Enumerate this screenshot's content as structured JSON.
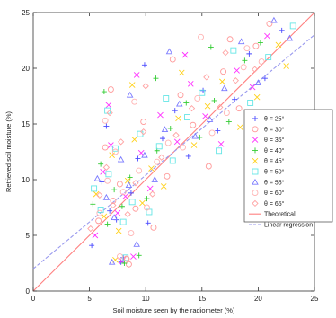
{
  "chart_data": {
    "type": "scatter",
    "title": "",
    "xlabel": "Soil moisture seen by the radiometer (%)",
    "ylabel": "Retrieved soil moisture (%)",
    "xlim": [
      0,
      25
    ],
    "ylim": [
      0,
      25
    ],
    "xticks": [
      0,
      5,
      10,
      15,
      20,
      25
    ],
    "yticks": [
      0,
      5,
      10,
      15,
      20,
      25
    ],
    "grid": false,
    "legend_position": "right",
    "series": [
      {
        "name": "θ = 25°",
        "marker": "plus",
        "color": "#4a4aff",
        "x": [
          5.2,
          6.1,
          6.8,
          7.4,
          8.0,
          8.7,
          9.3,
          10.2,
          11.5,
          12.6,
          13.8,
          15.1,
          16.4,
          17.9,
          19.2,
          20.6,
          22.1,
          6.5,
          7.8,
          9.9
        ],
        "y": [
          4.1,
          9.8,
          7.2,
          6.4,
          3.0,
          8.8,
          11.9,
          6.1,
          13.7,
          16.2,
          12.1,
          18.0,
          14.4,
          17.2,
          21.3,
          19.1,
          23.4,
          14.8,
          2.6,
          20.3
        ]
      },
      {
        "name": "θ = 30°",
        "marker": "circle",
        "color": "#ff9999",
        "x": [
          5.8,
          6.4,
          7.1,
          7.7,
          8.3,
          9.1,
          9.8,
          10.7,
          11.9,
          13.1,
          14.2,
          15.6,
          16.9,
          18.3,
          19.8,
          21.0,
          6.9,
          8.5,
          12.4,
          17.5
        ],
        "y": [
          6.3,
          12.9,
          8.1,
          9.6,
          2.9,
          7.4,
          15.2,
          5.7,
          10.3,
          17.6,
          14.9,
          11.2,
          19.7,
          16.4,
          22.0,
          24.0,
          18.1,
          2.4,
          20.8,
          22.6
        ]
      },
      {
        "name": "θ = 35°",
        "marker": "x",
        "color": "#ff33ff",
        "x": [
          5.5,
          6.2,
          6.9,
          7.5,
          8.2,
          8.9,
          9.6,
          10.4,
          11.3,
          12.8,
          14.0,
          15.3,
          16.7,
          18.1,
          19.5,
          6.7,
          7.9,
          9.2,
          13.5,
          20.8
        ],
        "y": [
          5.0,
          10.7,
          13.1,
          7.0,
          8.5,
          3.1,
          12.4,
          9.2,
          15.8,
          13.4,
          18.6,
          15.7,
          13.2,
          19.8,
          18.3,
          16.7,
          2.7,
          19.4,
          21.2,
          22.9
        ]
      },
      {
        "name": "θ = 40°",
        "marker": "plus",
        "color": "#33cc33",
        "x": [
          5.3,
          6.0,
          6.6,
          7.2,
          7.9,
          8.6,
          9.4,
          10.1,
          11.0,
          12.2,
          13.6,
          14.8,
          16.1,
          17.4,
          18.8,
          20.2,
          6.3,
          8.1,
          10.9,
          15.8
        ],
        "y": [
          7.8,
          11.4,
          6.0,
          9.1,
          7.6,
          10.2,
          3.2,
          8.3,
          12.6,
          14.6,
          16.9,
          13.8,
          17.1,
          15.2,
          20.7,
          22.3,
          17.9,
          2.5,
          19.1,
          21.9
        ]
      },
      {
        "name": "θ = 45°",
        "marker": "x",
        "color": "#ffd11a",
        "x": [
          5.6,
          6.3,
          7.0,
          7.6,
          8.4,
          9.0,
          9.7,
          10.5,
          11.6,
          12.9,
          14.3,
          15.5,
          16.8,
          18.4,
          19.9,
          21.8,
          7.3,
          8.8,
          13.2,
          22.5
        ],
        "y": [
          8.7,
          6.7,
          12.2,
          5.4,
          9.9,
          13.6,
          7.9,
          11.0,
          9.4,
          15.5,
          13.1,
          16.6,
          18.8,
          14.7,
          17.4,
          22.1,
          2.8,
          18.5,
          19.6,
          20.2
        ]
      },
      {
        "name": "θ = 50°",
        "marker": "square",
        "color": "#66e6e6",
        "x": [
          5.4,
          6.0,
          6.7,
          7.3,
          8.0,
          8.8,
          9.5,
          10.3,
          11.2,
          12.4,
          13.7,
          15.0,
          16.5,
          17.8,
          19.3,
          20.9,
          6.6,
          8.2,
          11.8,
          23.1
        ],
        "y": [
          9.2,
          7.3,
          10.5,
          12.8,
          6.2,
          8.0,
          14.1,
          7.1,
          13.0,
          11.7,
          15.6,
          17.8,
          12.6,
          21.6,
          16.9,
          21.0,
          16.2,
          3.0,
          17.3,
          23.8
        ]
      },
      {
        "name": "θ = 55°",
        "marker": "triangle",
        "color": "#7a7aff",
        "x": [
          5.7,
          6.5,
          7.2,
          7.8,
          8.5,
          9.2,
          9.9,
          10.8,
          11.7,
          13.0,
          14.4,
          15.7,
          17.0,
          18.5,
          20.0,
          21.4,
          7.0,
          8.6,
          12.1,
          22.8
        ],
        "y": [
          10.1,
          8.4,
          6.6,
          11.8,
          9.5,
          4.2,
          12.2,
          10.0,
          14.5,
          16.8,
          13.9,
          15.4,
          18.2,
          22.4,
          18.7,
          24.3,
          2.6,
          17.6,
          21.5,
          22.7
        ]
      },
      {
        "name": "θ = 60°",
        "marker": "circle",
        "color": "#ffb3b3",
        "x": [
          5.9,
          6.6,
          7.3,
          8.0,
          8.7,
          9.4,
          10.1,
          11.0,
          12.0,
          13.3,
          14.6,
          15.9,
          17.2,
          18.7,
          20.3,
          6.4,
          7.7,
          9.0,
          14.9,
          19.0
        ],
        "y": [
          7.0,
          9.9,
          12.5,
          8.9,
          5.2,
          10.8,
          7.5,
          11.6,
          13.3,
          12.9,
          17.3,
          14.2,
          16.0,
          20.1,
          20.6,
          15.3,
          3.1,
          17.0,
          22.8,
          21.8
        ]
      },
      {
        "name": "θ = 65°",
        "marker": "diamond",
        "color": "#ffa3a3",
        "x": [
          5.1,
          5.9,
          6.5,
          7.1,
          7.8,
          8.4,
          9.1,
          9.8,
          10.6,
          11.4,
          12.7,
          14.1,
          15.4,
          16.6,
          18.0,
          19.7,
          6.8,
          8.3,
          10.0,
          17.1
        ],
        "y": [
          5.6,
          8.6,
          11.1,
          7.7,
          13.4,
          6.9,
          9.7,
          14.3,
          8.7,
          12.0,
          14.0,
          16.4,
          19.2,
          16.5,
          18.9,
          19.9,
          16.0,
          2.9,
          18.4,
          21.4
        ]
      }
    ],
    "lines": [
      {
        "name": "Theoretical",
        "style": "solid",
        "color": "#ff8080",
        "x": [
          0,
          25
        ],
        "y": [
          0,
          25
        ]
      },
      {
        "name": "Linear regression",
        "style": "dashed",
        "color": "#9999ee",
        "x": [
          0,
          25
        ],
        "y": [
          2.0,
          23.0
        ]
      }
    ]
  }
}
